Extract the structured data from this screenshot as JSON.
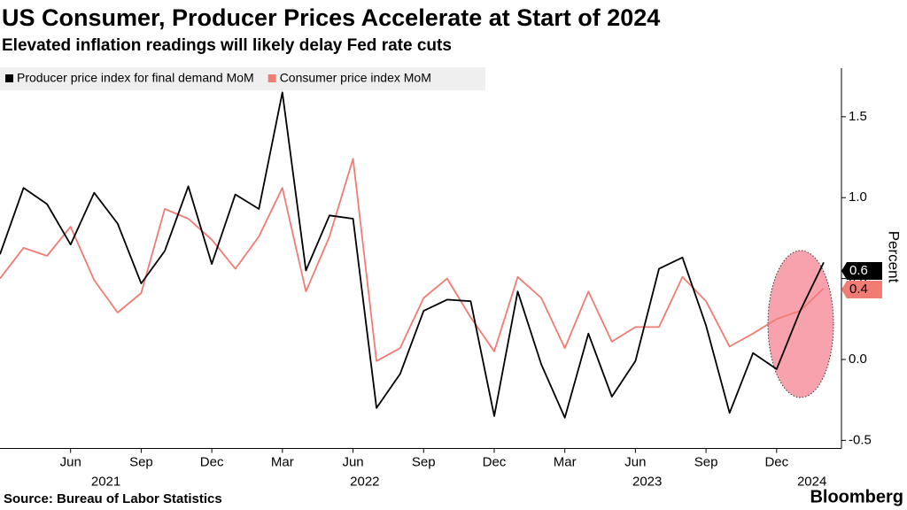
{
  "chart_data": {
    "type": "line",
    "title": "US Consumer, Producer Prices Accelerate at Start of 2024",
    "subtitle": "Elevated inflation readings will likely delay Fed rate cuts",
    "source": "Source: Bureau of Labor Statistics",
    "brand": "Bloomberg",
    "y_label": "Percent",
    "x": [
      "2021-03",
      "2021-04",
      "2021-05",
      "2021-06",
      "2021-07",
      "2021-08",
      "2021-09",
      "2021-10",
      "2021-11",
      "2021-12",
      "2022-01",
      "2022-02",
      "2022-03",
      "2022-04",
      "2022-05",
      "2022-06",
      "2022-07",
      "2022-08",
      "2022-09",
      "2022-10",
      "2022-11",
      "2022-12",
      "2023-01",
      "2023-02",
      "2023-03",
      "2023-04",
      "2023-05",
      "2023-06",
      "2023-07",
      "2023-08",
      "2023-09",
      "2023-10",
      "2023-11",
      "2023-12",
      "2024-01",
      "2024-02"
    ],
    "xticks": [
      {
        "value": "2021-06",
        "label": "Jun"
      },
      {
        "value": "2021-09",
        "label": "Sep"
      },
      {
        "value": "2021-12",
        "label": "Dec"
      },
      {
        "value": "2022-03",
        "label": "Mar"
      },
      {
        "value": "2022-06",
        "label": "Jun"
      },
      {
        "value": "2022-09",
        "label": "Sep"
      },
      {
        "value": "2022-12",
        "label": "Dec"
      },
      {
        "value": "2023-03",
        "label": "Mar"
      },
      {
        "value": "2023-06",
        "label": "Jun"
      },
      {
        "value": "2023-09",
        "label": "Sep"
      },
      {
        "value": "2023-12",
        "label": "Dec"
      }
    ],
    "x_years": [
      "2021",
      "2022",
      "2023",
      "2024"
    ],
    "series": [
      {
        "name": "Producer price index for final demand MoM",
        "color": "#000000",
        "values": [
          0.65,
          1.06,
          0.96,
          0.71,
          1.03,
          0.84,
          0.47,
          0.67,
          1.07,
          0.59,
          1.02,
          0.93,
          1.65,
          0.55,
          0.89,
          0.87,
          -0.3,
          -0.09,
          0.3,
          0.37,
          0.36,
          -0.35,
          0.42,
          -0.03,
          -0.36,
          0.16,
          -0.23,
          -0.01,
          0.56,
          0.63,
          0.21,
          -0.33,
          0.04,
          -0.06,
          0.3,
          0.6
        ],
        "value_labels": [
          null,
          null,
          null,
          null,
          null,
          null,
          null,
          null,
          null,
          null,
          null,
          null,
          null,
          null,
          null,
          null,
          null,
          null,
          null,
          null,
          null,
          null,
          null,
          null,
          null,
          null,
          null,
          null,
          null,
          null,
          null,
          null,
          null,
          null,
          null,
          "0.6"
        ]
      },
      {
        "name": "Consumer price index MoM",
        "color": "#f07c73",
        "values": [
          0.5,
          0.69,
          0.64,
          0.82,
          0.49,
          0.29,
          0.41,
          0.93,
          0.87,
          0.74,
          0.56,
          0.76,
          1.06,
          0.42,
          0.76,
          1.24,
          -0.01,
          0.07,
          0.38,
          0.5,
          0.26,
          0.05,
          0.51,
          0.38,
          0.07,
          0.42,
          0.11,
          0.2,
          0.2,
          0.51,
          0.36,
          0.08,
          0.16,
          0.25,
          0.3,
          0.44
        ],
        "value_labels": [
          null,
          null,
          null,
          null,
          null,
          null,
          null,
          null,
          null,
          null,
          null,
          null,
          null,
          null,
          null,
          null,
          null,
          null,
          null,
          null,
          null,
          null,
          null,
          null,
          null,
          null,
          null,
          null,
          null,
          null,
          null,
          null,
          null,
          null,
          null,
          "0.4"
        ]
      }
    ],
    "ylim": [
      -0.55,
      1.8
    ],
    "yticks": [
      -0.5,
      0.0,
      0.5,
      1.0,
      1.5
    ],
    "ytick_labels": [
      "-0.5",
      "0.0",
      "0.5",
      "1.0",
      "1.5"
    ],
    "grid": false
  }
}
